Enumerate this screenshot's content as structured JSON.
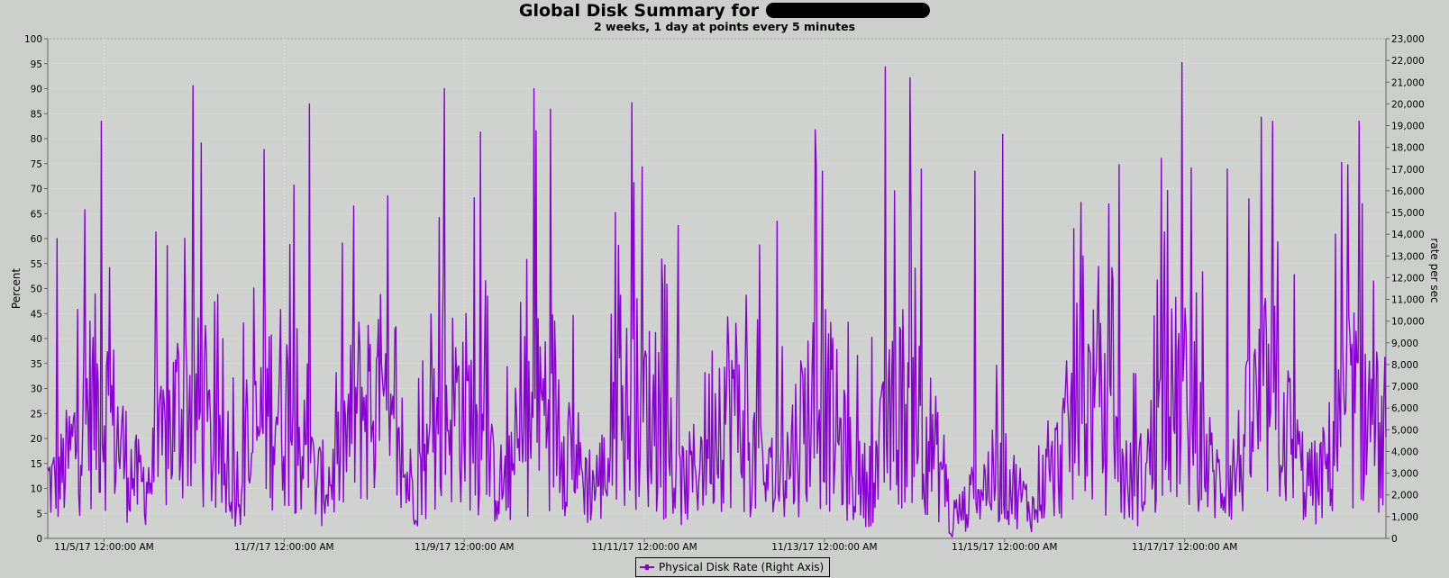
{
  "chart_data": {
    "type": "line",
    "title": "Global Disk Summary for",
    "subtitle": "2 weeks, 1 day at points every 5 minutes",
    "ylabel_left": "Percent",
    "ylabel_right": "rate per sec",
    "left_axis": {
      "min": 0,
      "max": 100,
      "ticks": [
        "0",
        "5",
        "10",
        "15",
        "20",
        "25",
        "30",
        "35",
        "40",
        "45",
        "50",
        "55",
        "60",
        "65",
        "70",
        "75",
        "80",
        "85",
        "90",
        "95",
        "100"
      ]
    },
    "right_axis": {
      "min": 0,
      "max": 23000,
      "ticks": [
        "0",
        "1,000",
        "2,000",
        "3,000",
        "4,000",
        "5,000",
        "6,000",
        "7,000",
        "8,000",
        "9,000",
        "10,000",
        "11,000",
        "12,000",
        "13,000",
        "14,000",
        "15,000",
        "16,000",
        "17,000",
        "18,000",
        "19,000",
        "20,000",
        "21,000",
        "22,000",
        "23,000"
      ]
    },
    "x_range": [
      "11/4/17",
      "11/18/17"
    ],
    "x_ticks": [
      "11/5/17 12:00:00 AM",
      "11/7/17 12:00:00 AM",
      "11/9/17 12:00:00 AM",
      "11/11/17 12:00:00 AM",
      "11/13/17 12:00:00 AM",
      "11/15/17 12:00:00 AM",
      "11/17/17 12:00:00 AM"
    ],
    "grid": true,
    "legend_position": "bottom-center",
    "series": [
      {
        "name": "Physical Disk Rate (Right Axis)",
        "axis": "right",
        "color": "#8a00d4",
        "peaks_x_days": [
          0.1,
          0.6,
          1.2,
          1.7,
          2.4,
          2.9,
          3.4,
          4.4,
          4.8,
          5.4,
          6.3,
          6.6,
          7.0,
          7.9,
          8.1,
          8.6,
          9.3,
          9.7,
          10.3,
          10.6,
          11.5,
          11.9,
          12.4,
          12.6,
          13.1,
          13.6,
          14.3,
          14.6
        ],
        "peaks_rate_per_sec": [
          13800,
          19200,
          14100,
          18200,
          17900,
          20000,
          15300,
          20700,
          18700,
          20700,
          15000,
          17100,
          14400,
          13500,
          14600,
          16900,
          21700,
          17000,
          16900,
          18600,
          13000,
          17200,
          14100,
          21900,
          17000,
          19200,
          14000,
          15400
        ],
        "baseline_rate_per_sec": 4200
      }
    ]
  }
}
